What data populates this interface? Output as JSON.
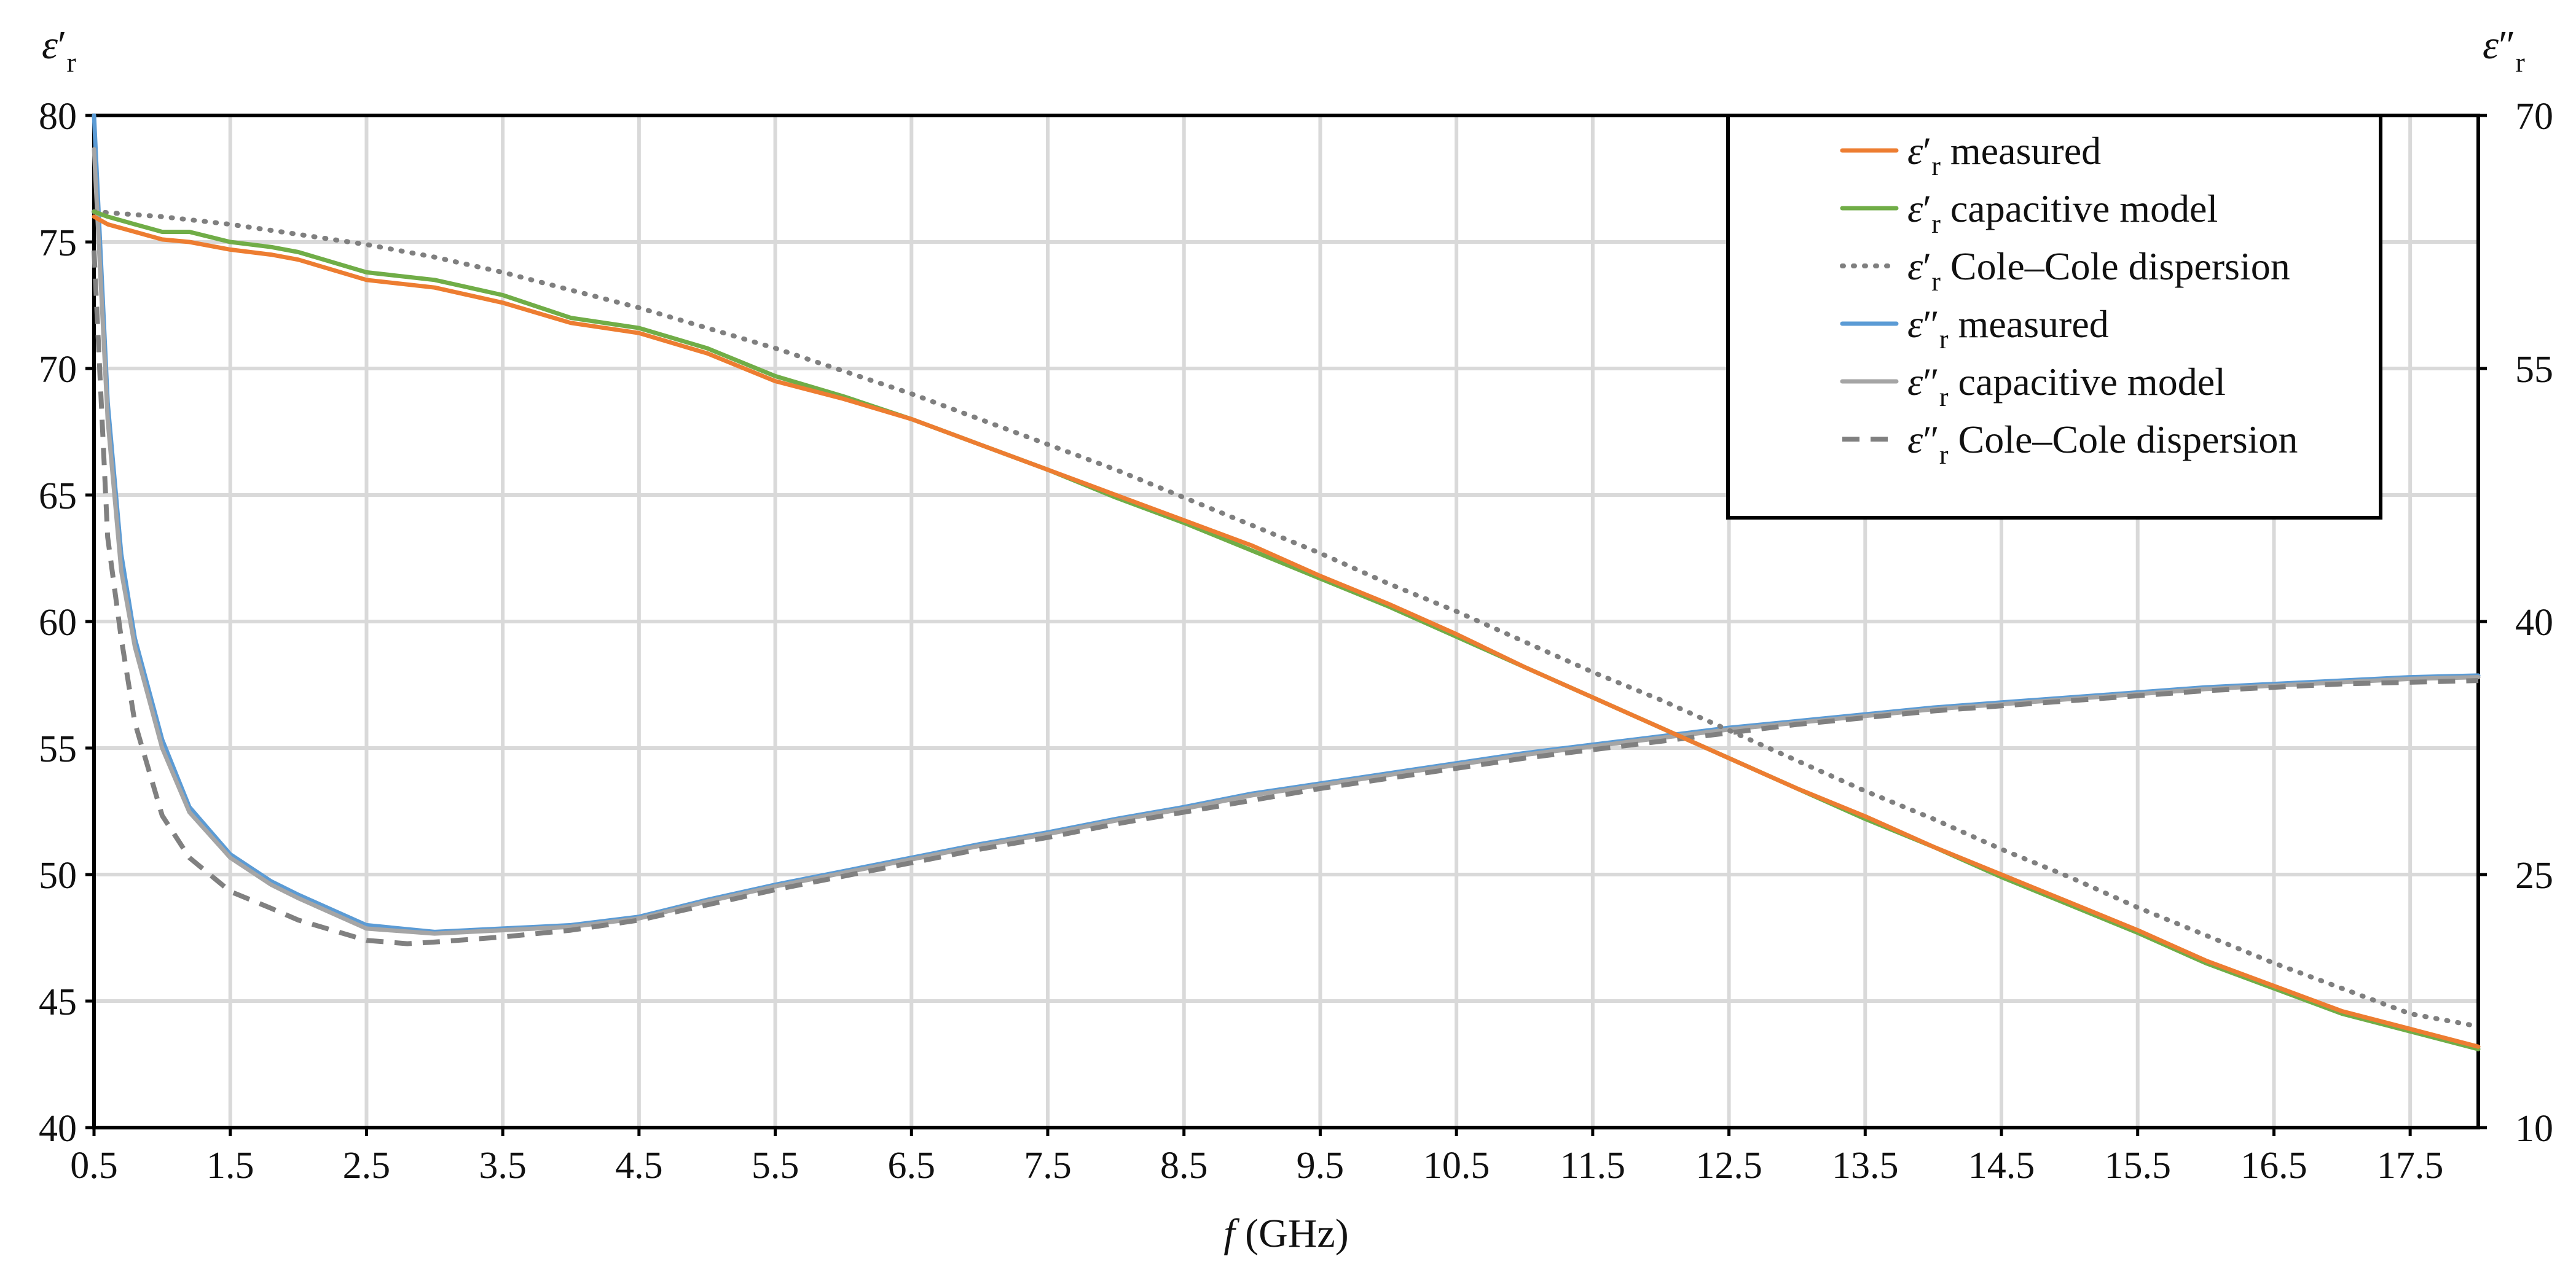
{
  "chart_data": {
    "type": "line",
    "xlabel": "f (GHz)",
    "ylabel_left": "ε′r",
    "ylabel_right": "ε″r",
    "xlim": [
      0.5,
      18.0
    ],
    "ylim_left": [
      40,
      80
    ],
    "ylim_right": [
      10,
      70
    ],
    "x_ticks": [
      0.5,
      1.5,
      2.5,
      3.5,
      4.5,
      5.5,
      6.5,
      7.5,
      8.5,
      9.5,
      10.5,
      11.5,
      12.5,
      13.5,
      14.5,
      15.5,
      16.5,
      17.5
    ],
    "y_ticks_left": [
      40,
      45,
      50,
      55,
      60,
      65,
      70,
      75,
      80
    ],
    "y_ticks_right": [
      10,
      25,
      40,
      55,
      70
    ],
    "grid": true,
    "legend_position": "top-right",
    "colors": {
      "eps1_measured": "#ed7d31",
      "eps1_capacitive": "#70ad47",
      "eps1_colecole": "#7f7f7f",
      "eps2_measured": "#5b9bd5",
      "eps2_capacitive": "#a5a5a5",
      "eps2_colecole": "#808080"
    },
    "series": [
      {
        "key": "eps1_measured",
        "name": "ε′r measured",
        "axis": "left",
        "style": "solid",
        "x": [
          0.5,
          0.6,
          0.8,
          1.0,
          1.2,
          1.5,
          1.8,
          2.0,
          2.5,
          3.0,
          3.5,
          4.0,
          4.5,
          5.0,
          5.5,
          6.0,
          6.5,
          7.0,
          7.5,
          8.0,
          8.5,
          9.0,
          9.5,
          10.0,
          10.5,
          11.0,
          11.5,
          12.0,
          12.5,
          13.0,
          13.5,
          14.0,
          14.5,
          15.0,
          15.5,
          16.0,
          16.5,
          17.0,
          17.5,
          18.0
        ],
        "y": [
          76.0,
          75.7,
          75.4,
          75.1,
          75.0,
          74.7,
          74.5,
          74.3,
          73.5,
          73.2,
          72.6,
          71.8,
          71.4,
          70.6,
          69.5,
          68.8,
          68.0,
          67.0,
          66.0,
          65.0,
          64.0,
          63.0,
          61.8,
          60.7,
          59.5,
          58.2,
          57.0,
          55.8,
          54.6,
          53.4,
          52.3,
          51.1,
          50.0,
          48.9,
          47.8,
          46.6,
          45.6,
          44.6,
          43.9,
          43.2
        ]
      },
      {
        "key": "eps1_capacitive",
        "name": "ε′r capacitive model",
        "axis": "left",
        "style": "solid",
        "x": [
          0.5,
          0.6,
          0.8,
          1.0,
          1.2,
          1.5,
          1.8,
          2.0,
          2.5,
          3.0,
          3.5,
          4.0,
          4.5,
          5.0,
          5.5,
          6.0,
          6.5,
          7.0,
          7.5,
          8.0,
          8.5,
          9.0,
          9.5,
          10.0,
          10.5,
          11.0,
          11.5,
          12.0,
          12.5,
          13.0,
          13.5,
          14.0,
          14.5,
          15.0,
          15.5,
          16.0,
          16.5,
          17.0,
          17.5,
          18.0
        ],
        "y": [
          76.2,
          76.0,
          75.7,
          75.4,
          75.4,
          75.0,
          74.8,
          74.6,
          73.8,
          73.5,
          72.9,
          72.0,
          71.6,
          70.8,
          69.7,
          68.9,
          68.0,
          67.0,
          66.0,
          64.9,
          63.9,
          62.8,
          61.7,
          60.6,
          59.4,
          58.2,
          57.0,
          55.8,
          54.6,
          53.4,
          52.2,
          51.1,
          49.9,
          48.8,
          47.7,
          46.5,
          45.5,
          44.5,
          43.8,
          43.1
        ]
      },
      {
        "key": "eps1_colecole",
        "name": "ε′r Cole–Cole dispersion",
        "axis": "left",
        "style": "dotted",
        "x": [
          0.5,
          1.0,
          1.5,
          2.0,
          2.5,
          3.0,
          3.5,
          4.0,
          4.5,
          5.0,
          5.5,
          6.0,
          6.5,
          7.0,
          7.5,
          8.0,
          8.5,
          9.0,
          9.5,
          10.0,
          10.5,
          11.0,
          11.5,
          12.0,
          12.5,
          13.0,
          13.5,
          14.0,
          14.5,
          15.0,
          15.5,
          16.0,
          16.5,
          17.0,
          17.5,
          18.0
        ],
        "y": [
          76.2,
          76.0,
          75.7,
          75.3,
          74.9,
          74.4,
          73.8,
          73.1,
          72.4,
          71.6,
          70.8,
          69.9,
          69.0,
          68.0,
          67.0,
          66.0,
          64.9,
          63.8,
          62.7,
          61.5,
          60.4,
          59.2,
          58.0,
          56.9,
          55.7,
          54.5,
          53.3,
          52.2,
          51.0,
          49.9,
          48.7,
          47.6,
          46.5,
          45.5,
          44.5,
          44.0
        ]
      },
      {
        "key": "eps2_measured",
        "name": "ε″r measured",
        "axis": "right",
        "style": "solid",
        "x": [
          0.5,
          0.6,
          0.7,
          0.8,
          1.0,
          1.2,
          1.5,
          1.8,
          2.0,
          2.5,
          3.0,
          3.5,
          4.0,
          4.5,
          5.0,
          5.5,
          6.0,
          6.5,
          7.0,
          7.5,
          8.0,
          8.5,
          9.0,
          9.5,
          10.0,
          10.5,
          11.0,
          11.5,
          12.0,
          12.5,
          13.0,
          13.5,
          14.0,
          14.5,
          15.0,
          15.5,
          16.0,
          16.5,
          17.0,
          17.5,
          18.0
        ],
        "y": [
          70.0,
          53.0,
          44.0,
          39.0,
          33.0,
          29.0,
          26.2,
          24.6,
          23.8,
          22.0,
          21.6,
          21.8,
          22.0,
          22.5,
          23.5,
          24.4,
          25.2,
          26.0,
          26.8,
          27.5,
          28.3,
          29.0,
          29.8,
          30.4,
          31.0,
          31.6,
          32.2,
          32.7,
          33.2,
          33.7,
          34.1,
          34.5,
          34.9,
          35.2,
          35.5,
          35.8,
          36.1,
          36.3,
          36.5,
          36.7,
          36.8
        ]
      },
      {
        "key": "eps2_capacitive",
        "name": "ε″r capacitive model",
        "axis": "right",
        "style": "solid",
        "x": [
          0.5,
          0.6,
          0.7,
          0.8,
          1.0,
          1.2,
          1.5,
          1.8,
          2.0,
          2.5,
          3.0,
          3.5,
          4.0,
          4.5,
          5.0,
          5.5,
          6.0,
          6.5,
          7.0,
          7.5,
          8.0,
          8.5,
          9.0,
          9.5,
          10.0,
          10.5,
          11.0,
          11.5,
          12.0,
          12.5,
          13.0,
          13.5,
          14.0,
          14.5,
          15.0,
          15.5,
          16.0,
          16.5,
          17.0,
          17.5,
          18.0
        ],
        "y": [
          68.0,
          52.0,
          43.0,
          38.5,
          32.5,
          28.7,
          26.0,
          24.4,
          23.6,
          21.8,
          21.5,
          21.7,
          21.9,
          22.4,
          23.4,
          24.3,
          25.1,
          25.9,
          26.7,
          27.4,
          28.2,
          28.9,
          29.7,
          30.3,
          30.9,
          31.5,
          32.1,
          32.6,
          33.1,
          33.6,
          34.0,
          34.4,
          34.8,
          35.1,
          35.4,
          35.7,
          36.0,
          36.2,
          36.4,
          36.6,
          36.7
        ]
      },
      {
        "key": "eps2_colecole",
        "name": "ε″r Cole–Cole dispersion",
        "axis": "right",
        "style": "dashed",
        "x": [
          0.5,
          0.6,
          0.7,
          0.8,
          1.0,
          1.2,
          1.5,
          1.8,
          2.0,
          2.5,
          2.8,
          3.0,
          3.5,
          4.0,
          4.5,
          5.0,
          5.5,
          6.0,
          6.5,
          7.0,
          7.5,
          8.0,
          8.5,
          9.0,
          9.5,
          10.0,
          10.5,
          11.0,
          11.5,
          12.0,
          12.5,
          13.0,
          13.5,
          14.0,
          14.5,
          15.0,
          15.5,
          16.0,
          16.5,
          17.0,
          17.5,
          18.0
        ],
        "y": [
          62.0,
          45.0,
          39.0,
          34.0,
          28.5,
          26.0,
          24.0,
          23.0,
          22.3,
          21.1,
          20.9,
          21.0,
          21.3,
          21.7,
          22.3,
          23.2,
          24.1,
          24.9,
          25.7,
          26.5,
          27.2,
          28.0,
          28.7,
          29.4,
          30.1,
          30.7,
          31.3,
          31.9,
          32.4,
          32.9,
          33.4,
          33.9,
          34.3,
          34.7,
          35.0,
          35.3,
          35.6,
          35.9,
          36.1,
          36.3,
          36.4,
          36.5
        ]
      }
    ]
  }
}
